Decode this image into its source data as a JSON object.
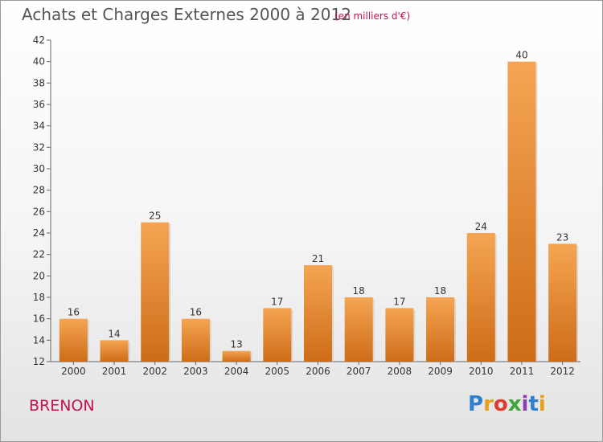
{
  "title": "Achats et Charges Externes 2000 à 2012",
  "subtitle": "(en milliers d'€)",
  "place": "BRENON",
  "logo": {
    "text": "Proxiti",
    "colors": [
      "#2f7fd0",
      "#e8a01c",
      "#e03c2c",
      "#3fa63a",
      "#8b3fb5",
      "#2f7fd0",
      "#e8a01c"
    ]
  },
  "colors": {
    "bar_top": "#f5a552",
    "bar_bottom": "#cd6c18",
    "axis": "#666666",
    "grid": "#aaaaaa",
    "accent": "#c4144a"
  },
  "chart_data": {
    "type": "bar",
    "categories": [
      "2000",
      "2001",
      "2002",
      "2003",
      "2004",
      "2005",
      "2006",
      "2007",
      "2008",
      "2009",
      "2010",
      "2011",
      "2012"
    ],
    "values": [
      16,
      14,
      25,
      16,
      13,
      17,
      21,
      18,
      17,
      18,
      24,
      40,
      23
    ],
    "ylim": [
      12,
      42
    ],
    "yticks": [
      12,
      14,
      16,
      18,
      20,
      22,
      24,
      26,
      28,
      30,
      32,
      34,
      36,
      38,
      40,
      42
    ],
    "grid": false,
    "data_labels": true
  }
}
